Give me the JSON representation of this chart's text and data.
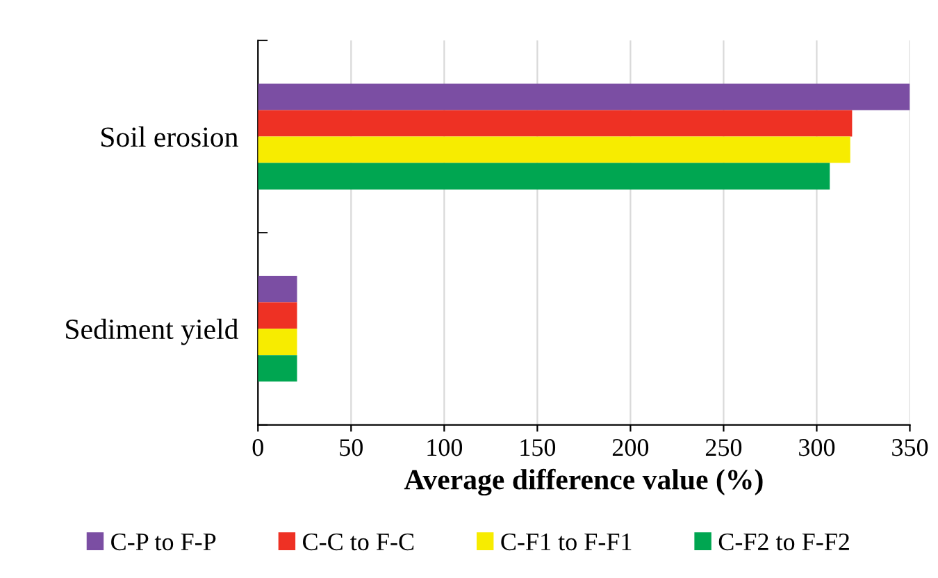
{
  "chart_data": {
    "type": "bar",
    "orientation": "horizontal",
    "xlabel": "Average difference value (%)",
    "categories": [
      "Soil erosion",
      "Sediment yield"
    ],
    "series": [
      {
        "name": "C-P to F-P",
        "color": "#7b4ea3",
        "values": [
          350,
          21
        ]
      },
      {
        "name": "C-C to F-C",
        "color": "#ee3124",
        "values": [
          319,
          21
        ]
      },
      {
        "name": "C-F1 to F-F1",
        "color": "#f7ec00",
        "values": [
          318,
          21
        ]
      },
      {
        "name": "C-F2 to F-F2",
        "color": "#00a651",
        "values": [
          307,
          21
        ]
      }
    ],
    "xlim": [
      0,
      350
    ],
    "xticks": [
      0,
      50,
      100,
      150,
      200,
      250,
      300,
      350
    ],
    "grid": "x",
    "legend": "bottom"
  }
}
